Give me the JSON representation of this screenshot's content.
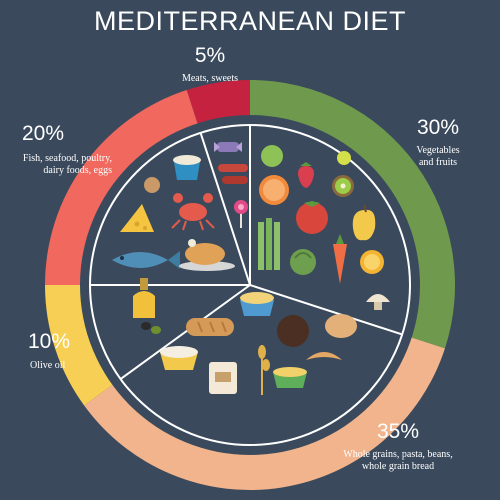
{
  "title": "MEDITERRANEAN DIET",
  "colors": {
    "background": "#3a4a5c",
    "meats_sweets": "#c4223e",
    "vegetables_fruits": "#6f9a4e",
    "grains": "#f2b48c",
    "olive_oil": "#f7cf55",
    "fish_dairy": "#f0685e"
  },
  "chart_data": {
    "type": "pie",
    "title": "MEDITERRANEAN DIET",
    "slices": [
      {
        "label": "Meats, sweets",
        "percent": 5,
        "percent_label": "5%",
        "color": "#c4223e"
      },
      {
        "label": "Vegetables and fruits",
        "percent": 30,
        "percent_label": "30%",
        "color": "#6f9a4e"
      },
      {
        "label": "Whole grains, pasta, beans, whole grain bread",
        "percent": 35,
        "percent_label": "35%",
        "color": "#f2b48c"
      },
      {
        "label": "Olive oil",
        "percent": 10,
        "percent_label": "10%",
        "color": "#f7cf55"
      },
      {
        "label": "Fish, seafood, poultry, dairy foods, eggs",
        "percent": 20,
        "percent_label": "20%",
        "color": "#f0685e"
      }
    ]
  },
  "labels": {
    "meats": {
      "pct": "5%",
      "line1": "Meats, sweets"
    },
    "veg": {
      "pct": "30%",
      "line1": "Vegetables",
      "line2": "and fruits"
    },
    "grains": {
      "pct": "35%",
      "line1": "Whole grains, pasta, beans,",
      "line2": "whole grain bread"
    },
    "oil": {
      "pct": "10%",
      "line1": "Olive oil"
    },
    "fish": {
      "pct": "20%",
      "line1": "Fish, seafood, poultry,",
      "line2": "dairy foods, eggs"
    }
  },
  "icons": [
    "lime-icon",
    "strawberry-icon",
    "grapefruit-icon",
    "tomato-icon",
    "kiwi-icon",
    "pear-icon",
    "asparagus-icon",
    "artichoke-icon",
    "carrot-icon",
    "orange-slice-icon",
    "mushroom-icon",
    "fish-icon",
    "crab-icon",
    "cheese-icon",
    "egg-icon",
    "roast-chicken-icon",
    "yogurt-icon",
    "candy-icon",
    "lollipop-icon",
    "sausage-icon",
    "olive-oil-bottle-icon",
    "olives-icon",
    "pasta-bowl-icon",
    "bread-loaf-icon",
    "round-bread-icon",
    "croissant-icon",
    "chocolate-cake-icon",
    "porridge-bowl-icon",
    "flour-bag-icon",
    "wheat-icon",
    "grain-bowl-icon"
  ]
}
